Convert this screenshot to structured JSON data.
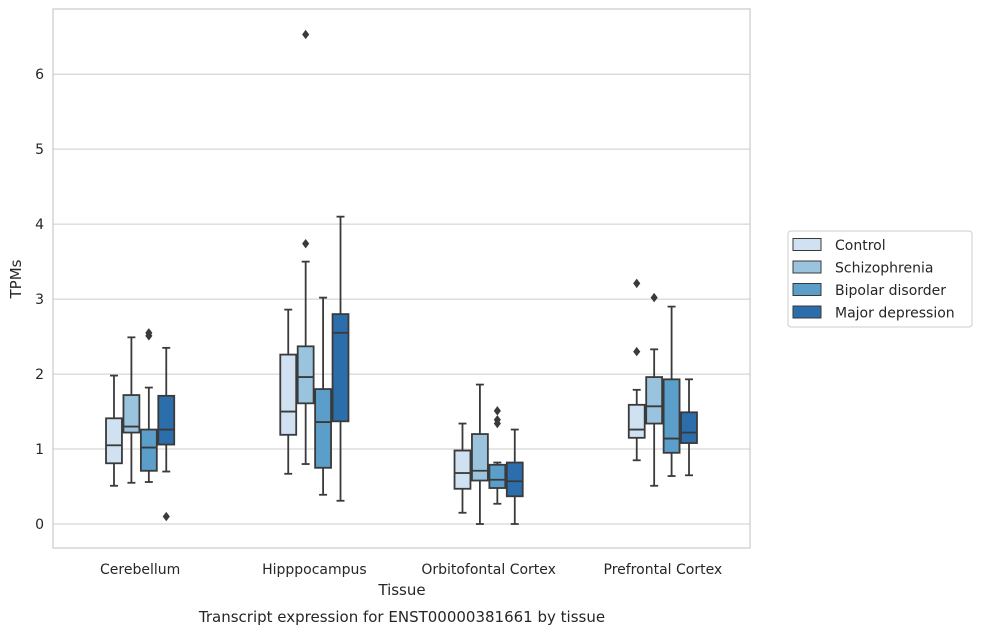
{
  "chart_data": {
    "type": "box",
    "caption": "Transcript expression for ENST00000381661 by tissue",
    "xlabel": "Tissue",
    "ylabel": "TPMs",
    "ylim": [
      -0.32,
      6.87
    ],
    "yticks": [
      0,
      1,
      2,
      3,
      4,
      5,
      6
    ],
    "grid": true,
    "legend_position": "right",
    "categories": [
      "Cerebellum",
      "Hipppocampus",
      "Orbitofontal Cortex",
      "Prefrontal Cortex"
    ],
    "series": [
      {
        "name": "Control",
        "color": "#d0e1f2",
        "boxes": [
          {
            "whislo": 0.51,
            "q1": 0.81,
            "med": 1.05,
            "q3": 1.41,
            "whishi": 1.98,
            "fliers": []
          },
          {
            "whislo": 0.67,
            "q1": 1.19,
            "med": 1.5,
            "q3": 2.26,
            "whishi": 2.86,
            "fliers": []
          },
          {
            "whislo": 0.15,
            "q1": 0.47,
            "med": 0.68,
            "q3": 0.98,
            "whishi": 1.34,
            "fliers": []
          },
          {
            "whislo": 0.85,
            "q1": 1.15,
            "med": 1.26,
            "q3": 1.59,
            "whishi": 1.79,
            "fliers": [
              2.3,
              3.21
            ]
          }
        ]
      },
      {
        "name": "Schizophrenia",
        "color": "#9ac4de",
        "boxes": [
          {
            "whislo": 0.55,
            "q1": 1.22,
            "med": 1.3,
            "q3": 1.72,
            "whishi": 2.49,
            "fliers": []
          },
          {
            "whislo": 0.8,
            "q1": 1.61,
            "med": 1.96,
            "q3": 2.37,
            "whishi": 3.5,
            "fliers": [
              3.74,
              6.53
            ]
          },
          {
            "whislo": 0.0,
            "q1": 0.58,
            "med": 0.71,
            "q3": 1.2,
            "whishi": 1.86,
            "fliers": []
          },
          {
            "whislo": 0.51,
            "q1": 1.34,
            "med": 1.57,
            "q3": 1.96,
            "whishi": 2.33,
            "fliers": [
              3.02
            ]
          }
        ]
      },
      {
        "name": "Bipolar disorder",
        "color": "#5a9ec9",
        "boxes": [
          {
            "whislo": 0.56,
            "q1": 0.71,
            "med": 1.02,
            "q3": 1.26,
            "whishi": 1.82,
            "fliers": [
              2.51,
              2.55
            ]
          },
          {
            "whislo": 0.39,
            "q1": 0.75,
            "med": 1.36,
            "q3": 1.8,
            "whishi": 3.02,
            "fliers": []
          },
          {
            "whislo": 0.27,
            "q1": 0.48,
            "med": 0.59,
            "q3": 0.79,
            "whishi": 0.82,
            "fliers": [
              1.34,
              1.39,
              1.51
            ]
          },
          {
            "whislo": 0.64,
            "q1": 0.95,
            "med": 1.14,
            "q3": 1.93,
            "whishi": 2.9,
            "fliers": []
          }
        ]
      },
      {
        "name": "Major depression",
        "color": "#2b6eab",
        "boxes": [
          {
            "whislo": 0.7,
            "q1": 1.06,
            "med": 1.26,
            "q3": 1.71,
            "whishi": 2.35,
            "fliers": [
              0.1
            ]
          },
          {
            "whislo": 0.31,
            "q1": 1.37,
            "med": 2.55,
            "q3": 2.8,
            "whishi": 4.1,
            "fliers": []
          },
          {
            "whislo": 0.0,
            "q1": 0.37,
            "med": 0.57,
            "q3": 0.82,
            "whishi": 1.26,
            "fliers": []
          },
          {
            "whislo": 0.65,
            "q1": 1.08,
            "med": 1.22,
            "q3": 1.49,
            "whishi": 1.93,
            "fliers": []
          }
        ]
      }
    ]
  }
}
